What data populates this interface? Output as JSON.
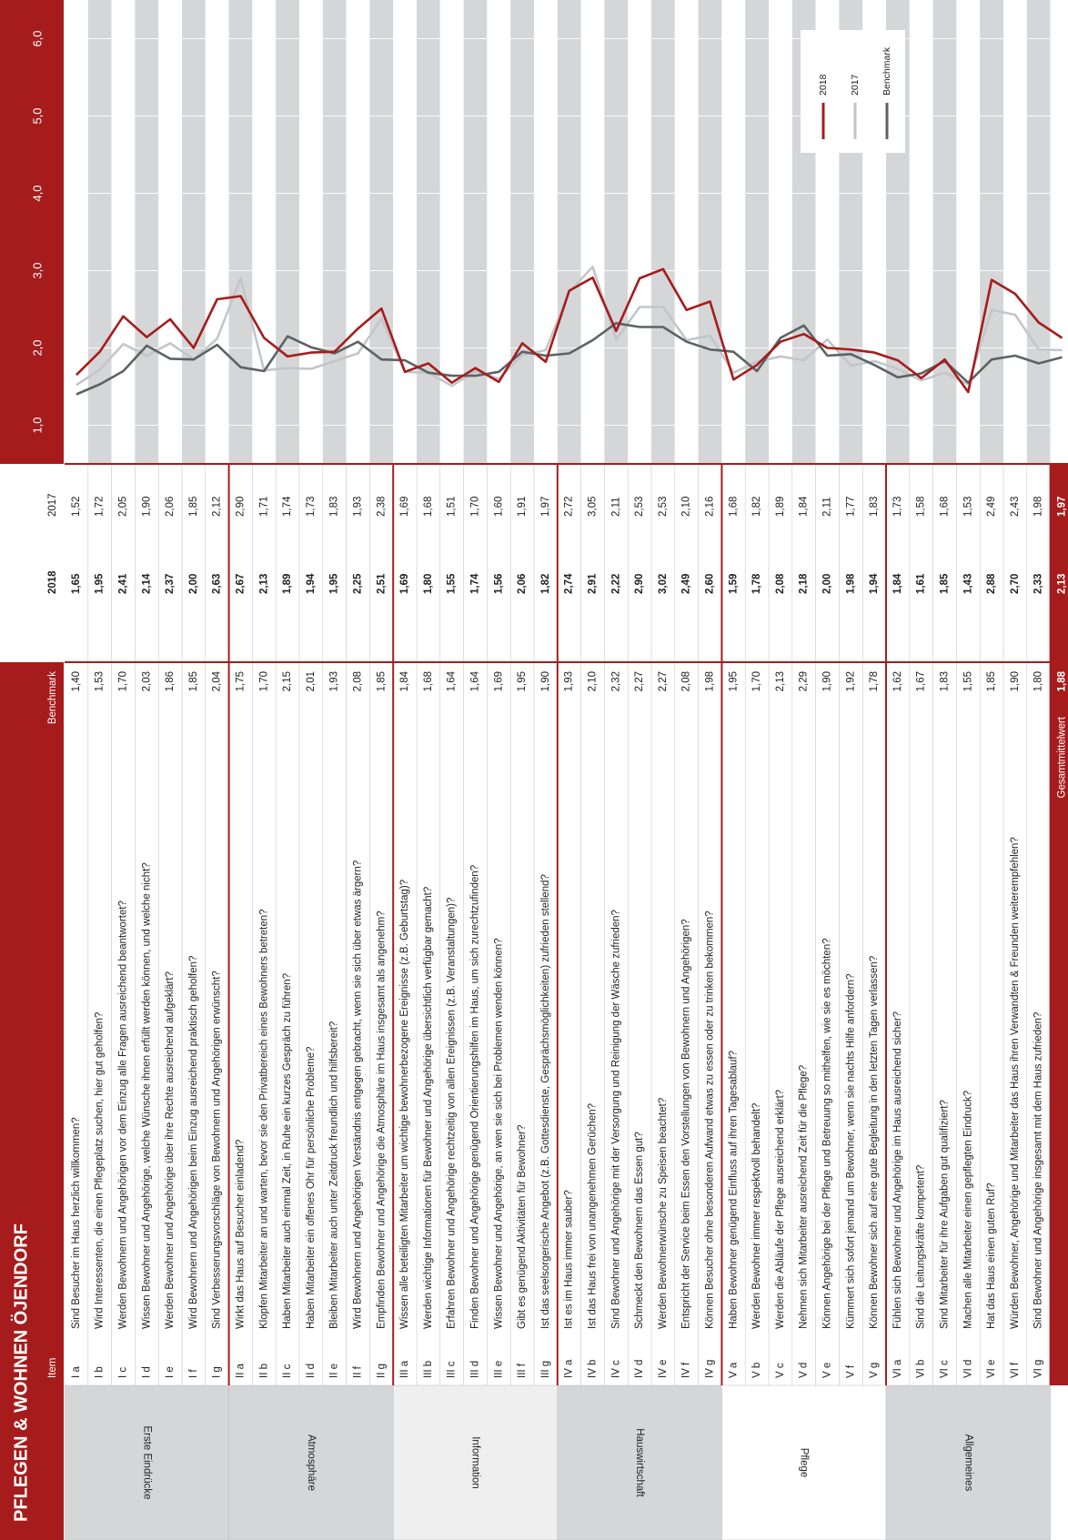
{
  "chart_data": {
    "type": "line",
    "title": "PFLEGEN & WOHNEN ÖJENDORF",
    "item_header": "Item",
    "sections": [
      "Erste Eindrücke",
      "Atmosphäre",
      "Information",
      "Hauswirtschaft",
      "Pflege",
      "Allgemeines"
    ],
    "categories": [
      "I a",
      "I b",
      "I c",
      "I d",
      "I e",
      "I f",
      "I g",
      "II a",
      "II b",
      "II c",
      "II d",
      "II e",
      "II f",
      "II g",
      "III a",
      "III b",
      "III c",
      "III d",
      "III e",
      "III f",
      "III g",
      "IV a",
      "IV b",
      "IV c",
      "IV d",
      "IV e",
      "IV f",
      "IV g",
      "V a",
      "V b",
      "V c",
      "V d",
      "V e",
      "V f",
      "V g",
      "VI a",
      "VI b",
      "VI c",
      "VI d",
      "VI e",
      "VI f",
      "VI g",
      "Gesamtmittelwert"
    ],
    "questions": [
      "Sind Besucher im Haus herzlich willkommen?",
      "Wird Interessenten, die einen Pflegeplatz suchen, hier gut geholfen?",
      "Werden Bewohnern und Angehörigen vor dem Einzug alle Fragen ausreichend beantwortet?",
      "Wissen Bewohner und Angehörige, welche Wünsche ihnen erfüllt werden können, und welche nicht?",
      "Werden Bewohner und Angehörige über ihre Rechte ausreichend aufgeklärt?",
      "Wird Bewohnern und Angehörigen beim Einzug ausreichend praktisch geholfen?",
      "Sind Verbesserungsvorschläge von Bewohnern und Angehörigen erwünscht?",
      "Wirkt das Haus auf Besucher einladend?",
      "Klopfen Mitarbeiter an und warten, bevor sie den Privatbereich eines Bewohners betreten?",
      "Haben Mitarbeiter auch einmal Zeit, in Ruhe ein kurzes Gespräch zu führen?",
      "Haben Mitarbeiter ein offenes Ohr für persönliche Probleme?",
      "Bleiben Mitarbeiter auch unter Zeitdruck freundlich und hilfsbereit?",
      "Wird Bewohnern und Angehörigen Verständnis entgegen gebracht, wenn sie sich über etwas ärgern?",
      "Empfinden Bewohner und Angehörige die Atmosphäre im Haus insgesamt als angenehm?",
      "Wissen alle beteiligten Mitarbeiter um wichtige bewohnerbezogene Ereignisse (z.B. Geburtstag)?",
      "Werden wichtige Informationen für Bewohner und Angehörige übersichtlich verfügbar gemacht?",
      "Erfahren Bewohner und Angehörige rechtzeitig von allen Ereignissen (z.B. Veranstaltungen)?",
      "Finden Bewohner und Angehörige genügend Orientierungshilfen im Haus, um sich zurechtzufinden?",
      "Wissen Bewohner und Angehörige, an wen sie sich bei Problemen wenden können?",
      "Gibt es genügend Aktivitäten für Bewohner?",
      "Ist das seelsorgerische Angebot (z.B. Gottesdienste, Gesprächsmöglichkeiten) zufrieden stellend?",
      "Ist es im Haus immer sauber?",
      "Ist das Haus frei von unangenehmen Gerüchen?",
      "Sind Bewohner und Angehörige mit der Versorgung und Reinigung der Wäsche zufrieden?",
      "Schmeckt den Bewohnern das Essen gut?",
      "Werden Bewohnerwünsche zu Speisen beachtet?",
      "Entspricht der Service beim Essen den Vorstellungen von Bewohnern und Angehörigen?",
      "Können Besucher ohne besonderen Aufwand etwas zu essen oder zu trinken bekommen?",
      "Haben Bewohner genügend Einfluss auf ihren Tagesablauf?",
      "Werden Bewohner immer respektvoll behandelt?",
      "Werden die Abläufe der Pflege ausreichend erklärt?",
      "Nehmen sich Mitarbeiter ausreichend Zeit für die Pflege?",
      "Können Angehörige bei der Pflege und Betreuung so mithelfen, wie sie es möchten?",
      "Kümmert sich sofort jemand um Bewohner, wenn sie nachts Hilfe anfordern?",
      "Können Bewohner sich auf eine gute Begleitung in den letzten Tagen verlassen?",
      "Fühlen sich Bewohner und Angehörige im Haus ausreichend sicher?",
      "Sind die Leitungskräfte kompetent?",
      "Sind Mitarbeiter für ihre Aufgaben gut qualifiziert?",
      "Machen alle Mitarbeiter einen gepflegten Eindruck?",
      "Hat das Haus einen guten Ruf?",
      "Würden Bewohner, Angehörige und Mitarbeiter das Haus ihren Verwandten & Freunden weiterempfehlen?",
      "Sind Bewohner und Angehörige insgesamt mit dem Haus zufrieden?"
    ],
    "series": [
      {
        "name": "2018",
        "color": "#a61c1c",
        "values": [
          1.65,
          1.95,
          2.41,
          2.14,
          2.37,
          2.0,
          2.63,
          2.67,
          2.13,
          1.89,
          1.94,
          1.95,
          2.25,
          2.51,
          1.69,
          1.8,
          1.55,
          1.74,
          1.56,
          2.06,
          1.82,
          2.74,
          2.91,
          2.22,
          2.9,
          3.02,
          2.49,
          2.6,
          1.59,
          1.78,
          2.08,
          2.18,
          2.0,
          1.98,
          1.94,
          1.84,
          1.61,
          1.85,
          1.43,
          2.88,
          2.7,
          2.33,
          2.13
        ],
        "value_labels": [
          "1,65",
          "1,95",
          "2,41",
          "2,14",
          "2,37",
          "2,00",
          "2,63",
          "2,67",
          "2,13",
          "1,89",
          "1,94",
          "1,95",
          "2,25",
          "2,51",
          "1,69",
          "1,80",
          "1,55",
          "1,74",
          "1,56",
          "2,06",
          "1,82",
          "2,74",
          "2,91",
          "2,22",
          "2,90",
          "3,02",
          "2,49",
          "2,60",
          "1,59",
          "1,78",
          "2,08",
          "2,18",
          "2,00",
          "1,98",
          "1,94",
          "1,84",
          "1,61",
          "1,85",
          "1,43",
          "2,88",
          "2,70",
          "2,33",
          "2,13"
        ]
      },
      {
        "name": "2017",
        "color": "#c3c6c9",
        "values": [
          1.52,
          1.72,
          2.05,
          1.9,
          2.06,
          1.85,
          2.12,
          2.9,
          1.71,
          1.74,
          1.73,
          1.83,
          1.93,
          2.38,
          1.69,
          1.68,
          1.51,
          1.7,
          1.6,
          1.91,
          1.97,
          2.72,
          3.05,
          2.11,
          2.53,
          2.53,
          2.1,
          2.16,
          1.68,
          1.82,
          1.89,
          1.84,
          2.11,
          1.77,
          1.83,
          1.73,
          1.58,
          1.68,
          1.53,
          2.49,
          2.43,
          1.98,
          1.97
        ],
        "value_labels": [
          "1,52",
          "1,72",
          "2,05",
          "1,90",
          "2,06",
          "1,85",
          "2,12",
          "2,90",
          "1,71",
          "1,74",
          "1,73",
          "1,83",
          "1,93",
          "2,38",
          "1,69",
          "1,68",
          "1,51",
          "1,70",
          "1,60",
          "1,91",
          "1,97",
          "2,72",
          "3,05",
          "2,11",
          "2,53",
          "2,53",
          "2,10",
          "2,16",
          "1,68",
          "1,82",
          "1,89",
          "1,84",
          "2,11",
          "1,77",
          "1,83",
          "1,73",
          "1,58",
          "1,68",
          "1,53",
          "2,49",
          "2,43",
          "1,98",
          "1,97"
        ]
      },
      {
        "name": "Benchmark",
        "color": "#5e6265",
        "values": [
          1.4,
          1.53,
          1.7,
          2.03,
          1.86,
          1.85,
          2.04,
          1.75,
          1.7,
          2.15,
          2.01,
          1.93,
          2.08,
          1.85,
          1.84,
          1.68,
          1.64,
          1.64,
          1.69,
          1.95,
          1.9,
          1.93,
          2.1,
          2.32,
          2.27,
          2.27,
          2.08,
          1.98,
          1.95,
          1.7,
          2.13,
          2.29,
          1.9,
          1.92,
          1.78,
          1.62,
          1.67,
          1.83,
          1.55,
          1.85,
          1.9,
          1.8,
          1.88
        ],
        "value_labels": [
          "1,40",
          "1,53",
          "1,70",
          "2,03",
          "1,86",
          "1,85",
          "2,04",
          "1,75",
          "1,70",
          "2,15",
          "2,01",
          "1,93",
          "2,08",
          "1,85",
          "1,84",
          "1,68",
          "1,64",
          "1,64",
          "1,69",
          "1,95",
          "1,90",
          "1,93",
          "2,10",
          "2,32",
          "2,27",
          "2,27",
          "2,08",
          "1,98",
          "1,95",
          "1,70",
          "2,13",
          "2,29",
          "1,90",
          "1,92",
          "1,78",
          "1,62",
          "1,67",
          "1,83",
          "1,55",
          "1,85",
          "1,90",
          "1,80",
          "1,88"
        ]
      }
    ],
    "ylim": [
      0.5,
      6.5
    ],
    "yticks": [
      {
        "value": 1,
        "label": "1,0"
      },
      {
        "value": 2,
        "label": "2,0"
      },
      {
        "value": 3,
        "label": "3,0"
      },
      {
        "value": 4,
        "label": "4,0"
      },
      {
        "value": 5,
        "label": "5,0"
      },
      {
        "value": 6,
        "label": "6,0"
      }
    ],
    "grid": true
  }
}
